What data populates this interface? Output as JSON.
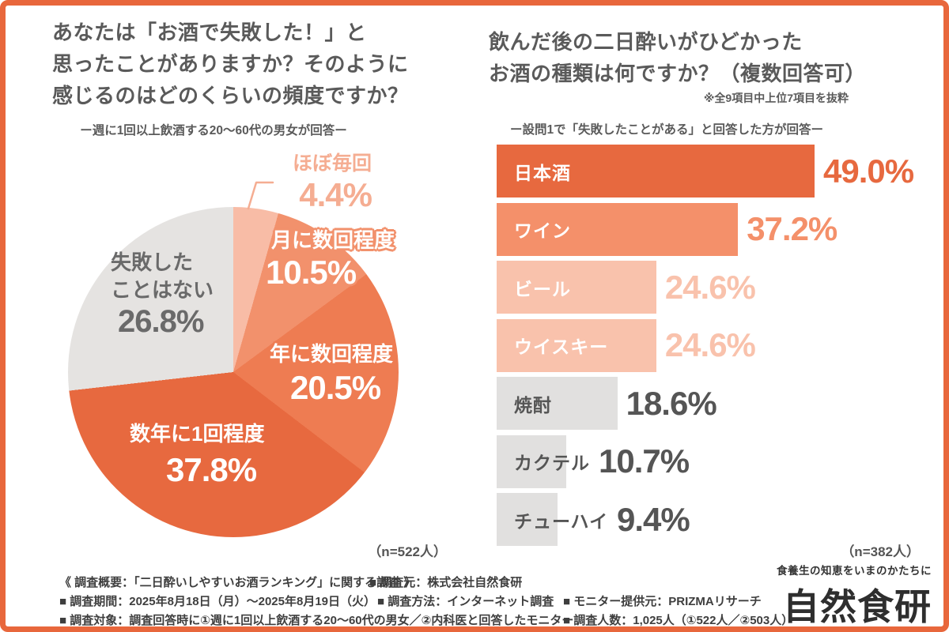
{
  "chart_data": [
    {
      "type": "pie",
      "title_lines": [
        "あなたは「お酒で失敗した！」と",
        "思ったことがありますか？そのように",
        "感じるのはどのくらいの頻度ですか？"
      ],
      "subtitle": "ー週に1回以上飲酒する20〜60代の男女が回答ー",
      "n_label": "（n=522人）",
      "start_angle_deg": 0,
      "direction": "clockwise",
      "legend_position": "labels-on-slices",
      "slices": [
        {
          "label": "ほぼ毎回",
          "value": 4.4,
          "value_text": "4.4%",
          "color": "#F8BCA6",
          "label_color": "#F5AD92",
          "label_style": "outside-callout"
        },
        {
          "label": "月に数回程度",
          "value": 10.5,
          "value_text": "10.5%",
          "color": "#F2916C",
          "label_color": "#FFFFFF"
        },
        {
          "label": "年に数回程度",
          "value": 20.5,
          "value_text": "20.5%",
          "color": "#EE7C52",
          "label_color": "#FFFFFF"
        },
        {
          "label": "数年に1回程度",
          "value": 37.8,
          "value_text": "37.8%",
          "color": "#E7693F",
          "label_color": "#FFFFFF"
        },
        {
          "label": "失敗したことはない",
          "value": 26.8,
          "value_text": "26.8%",
          "color": "#E5E3E1",
          "label_color": "#6A6A6A",
          "label_lines": [
            "失敗した",
            "ことはない"
          ]
        }
      ]
    },
    {
      "type": "bar",
      "orientation": "horizontal",
      "title_lines": [
        "飲んだ後の二日酔いがひどかった",
        "お酒の種類は何ですか？（複数回答可）"
      ],
      "note": "※全9項目中上位7項目を抜粋",
      "subtitle": "ー設問1で「失敗したことがある」と回答した方が回答ー",
      "n_label": "（n=382人）",
      "xmax": 49.0,
      "grid": false,
      "categories": [
        "日本酒",
        "ワイン",
        "ビール",
        "ウイスキー",
        "焼酎",
        "カクテル",
        "チューハイ"
      ],
      "values": [
        49.0,
        37.2,
        24.6,
        24.6,
        18.6,
        10.7,
        9.4
      ],
      "value_labels": [
        "49.0%",
        "37.2%",
        "24.6%",
        "24.6%",
        "18.6%",
        "10.7%",
        "9.4%"
      ],
      "bar_colors": [
        "#E7693F",
        "#F4906A",
        "#F9C2AC",
        "#F9C2AC",
        "#E1E0DF",
        "#E1E0DF",
        "#E1E0DF"
      ],
      "label_colors": [
        "#FFFFFF",
        "#FFFFFF",
        "#FFFFFF",
        "#FFFFFF",
        "#555555",
        "#555555",
        "#555555"
      ],
      "value_colors": [
        "#E7693F",
        "#F4906A",
        "#F9C2AC",
        "#F9C2AC",
        "#555555",
        "#555555",
        "#555555"
      ]
    }
  ],
  "footer": {
    "rows": [
      {
        "items": [
          "《 調査概要：「二日酔いしやすいお酒ランキング」に関する調査 》",
          "■ 調査元：株式会社自然食研"
        ]
      },
      {
        "items": [
          "■ 調査期間：2025年8月18日（月）〜2025年8月19日（火）",
          "■ 調査方法：インターネット調査",
          "■ モニター提供元：PRIZMAリサーチ"
        ]
      },
      {
        "items": [
          "■ 調査対象：調査回答時に①週に1回以上飲酒する20〜60代の男女／②内科医と回答したモニター",
          "■ 調査人数：1,025人（①522人／②503人）"
        ]
      }
    ]
  },
  "logo": {
    "tagline": "食養生の知恵をいまのかたちに",
    "name": "自然食研"
  },
  "colors": {
    "border": "#E8673C",
    "title_text": "#5A5A5A",
    "footer_text": "#3E3E3E",
    "deep_orange": "#E7693F",
    "salmon": "#F4906A",
    "light_salmon": "#F9C2AC",
    "gray": "#E1E0DF"
  }
}
